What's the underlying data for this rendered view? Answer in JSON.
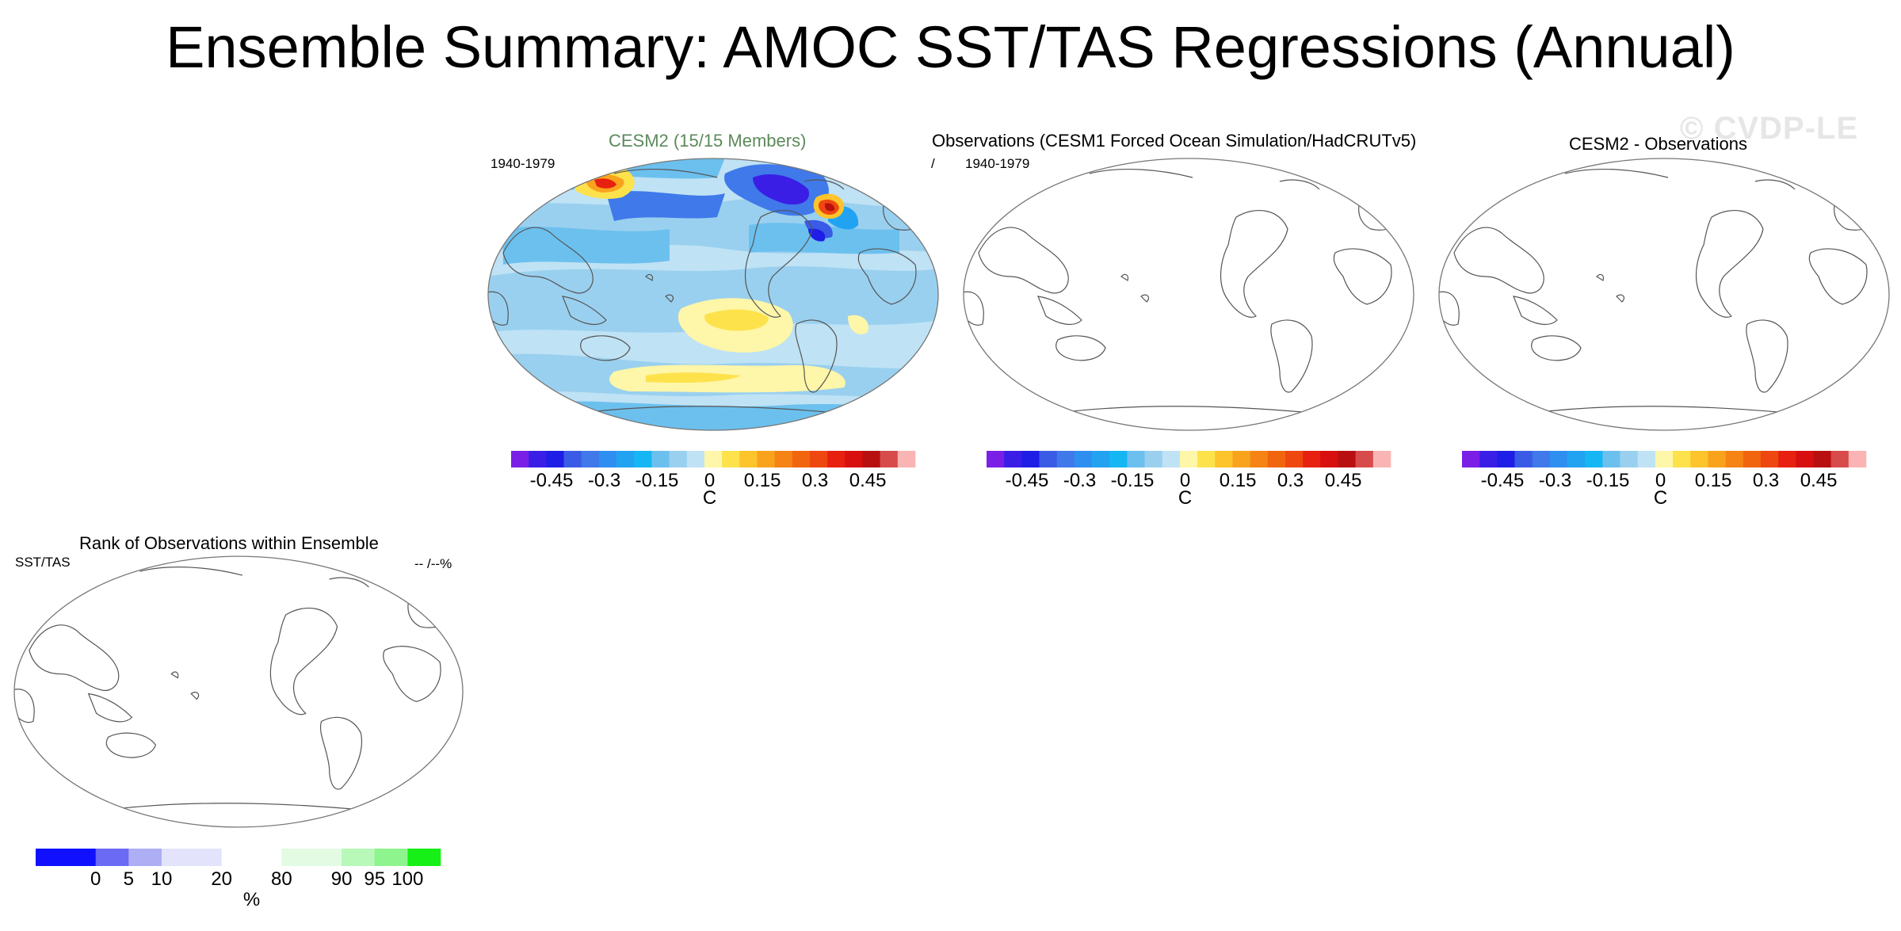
{
  "title": "Ensemble Summary: AMOC SST/TAS Regressions (Annual)",
  "watermark": "© CVDP-LE",
  "panels": {
    "cesm2": {
      "title": "CESM2 (15/15 Members)",
      "title_color": "#5b8a5b",
      "period": "1940-1979"
    },
    "obs": {
      "title": "Observations (CESM1 Forced Ocean Simulation/HadCRUTv5)",
      "slash": "/",
      "period": "1940-1979"
    },
    "diff": {
      "title": "CESM2 - Observations"
    },
    "rank": {
      "title": "Rank of Observations within Ensemble",
      "left_label": "SST/TAS",
      "right_label": "-- /--%"
    }
  },
  "regression_colorbar": {
    "colors": [
      "#7a1fe6",
      "#3b1ee6",
      "#1e1ee6",
      "#3a5be6",
      "#3f79ea",
      "#2f8ff0",
      "#22a3f2",
      "#15b6f4",
      "#6cc0ee",
      "#9ad0ef",
      "#bfe2f5",
      "#fef6a8",
      "#fde24c",
      "#fdc42b",
      "#f9a31d",
      "#f58415",
      "#f2650f",
      "#ee4710",
      "#e8200f",
      "#d80f0f",
      "#b81010",
      "#d84b4b",
      "#fbb4b4"
    ],
    "tick_labels": [
      "-0.45",
      "-0.3",
      "-0.15",
      "0",
      "0.15",
      "0.3",
      "0.45"
    ],
    "unit": "C"
  },
  "rank_colorbar": {
    "colors": [
      "#1010ff",
      "#6a6af5",
      "#aeaef5",
      "#e3e3fb",
      "#ffffff",
      "#e3fbe3",
      "#b8f8b8",
      "#8ef48e",
      "#16f016"
    ],
    "tick_labels": [
      "0",
      "5",
      "10",
      "20",
      "80",
      "90",
      "95",
      "100"
    ],
    "unit": "%"
  }
}
